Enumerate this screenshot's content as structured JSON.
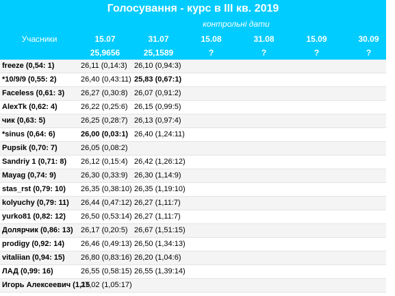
{
  "header": {
    "title": "Голосування - курс в III кв. 2019",
    "subtitle": "контрольні дати",
    "participants_label": "Учасники",
    "dates": [
      "15.07",
      "31.07",
      "15.08",
      "31.08",
      "15.09",
      "30.09"
    ],
    "rates": [
      "25,9656",
      "25,1589",
      "?",
      "?",
      "?",
      "?"
    ]
  },
  "table": {
    "rows": [
      [
        "freeze (0,54: 1)",
        "26,11 (0,14:3)",
        "26,10 (0,94:3)"
      ],
      [
        "*10/9/9 (0,55: 2)",
        "26,40 (0,43:11)",
        "25,83 (0,67:1)"
      ],
      [
        "Faceless (0,61: 3)",
        "26,27 (0,30:8)",
        "26,07 (0,91:2)"
      ],
      [
        "AlexTk (0,62: 4)",
        "26,22 (0,25:6)",
        "26,15 (0,99:5)"
      ],
      [
        "чик (0,63: 5)",
        "26,25 (0,28:7)",
        "26,13 (0,97:4)"
      ],
      [
        "*sinus (0,64: 6)",
        "26,00 (0,03:1)",
        "26,40 (1,24:11)"
      ],
      [
        "Pupsik (0,70: 7)",
        "26,05 (0,08:2)",
        ""
      ],
      [
        "Sandriy 1 (0,71: 8)",
        "26,12 (0,15:4)",
        "26,42 (1,26:12)"
      ],
      [
        "Mayag (0,74: 9)",
        "26,30 (0,33:9)",
        "26,30 (1,14:9)"
      ],
      [
        "stas_rst (0,79: 10)",
        "26,35 (0,38:10)",
        "26,35 (1,19:10)"
      ],
      [
        "kolyuchy (0,79: 11)",
        "26,44 (0,47:12)",
        "26,27 (1,11:7)"
      ],
      [
        "yurko81 (0,82: 12)",
        "26,50 (0,53:14)",
        "26,27 (1,11:7)"
      ],
      [
        "Долярчик (0,86: 13)",
        "26,17 (0,20:5)",
        "26,67 (1,51:15)"
      ],
      [
        "prodigy (0,92: 14)",
        "26,46 (0,49:13)",
        "26,50 (1,34:13)"
      ],
      [
        "vitaliian (0,94: 15)",
        "26,80 (0,83:16)",
        "26,20 (1,04:6)"
      ],
      [
        "ЛАД (0,99: 16)",
        "26,55 (0,58:15)",
        "26,55 (1,39:14)"
      ],
      [
        "Игорь Алексеевич (1,15",
        "27,02 (1,05:17)",
        ""
      ]
    ],
    "emphasized": [
      [
        1,
        2
      ],
      [
        5,
        1
      ]
    ]
  }
}
